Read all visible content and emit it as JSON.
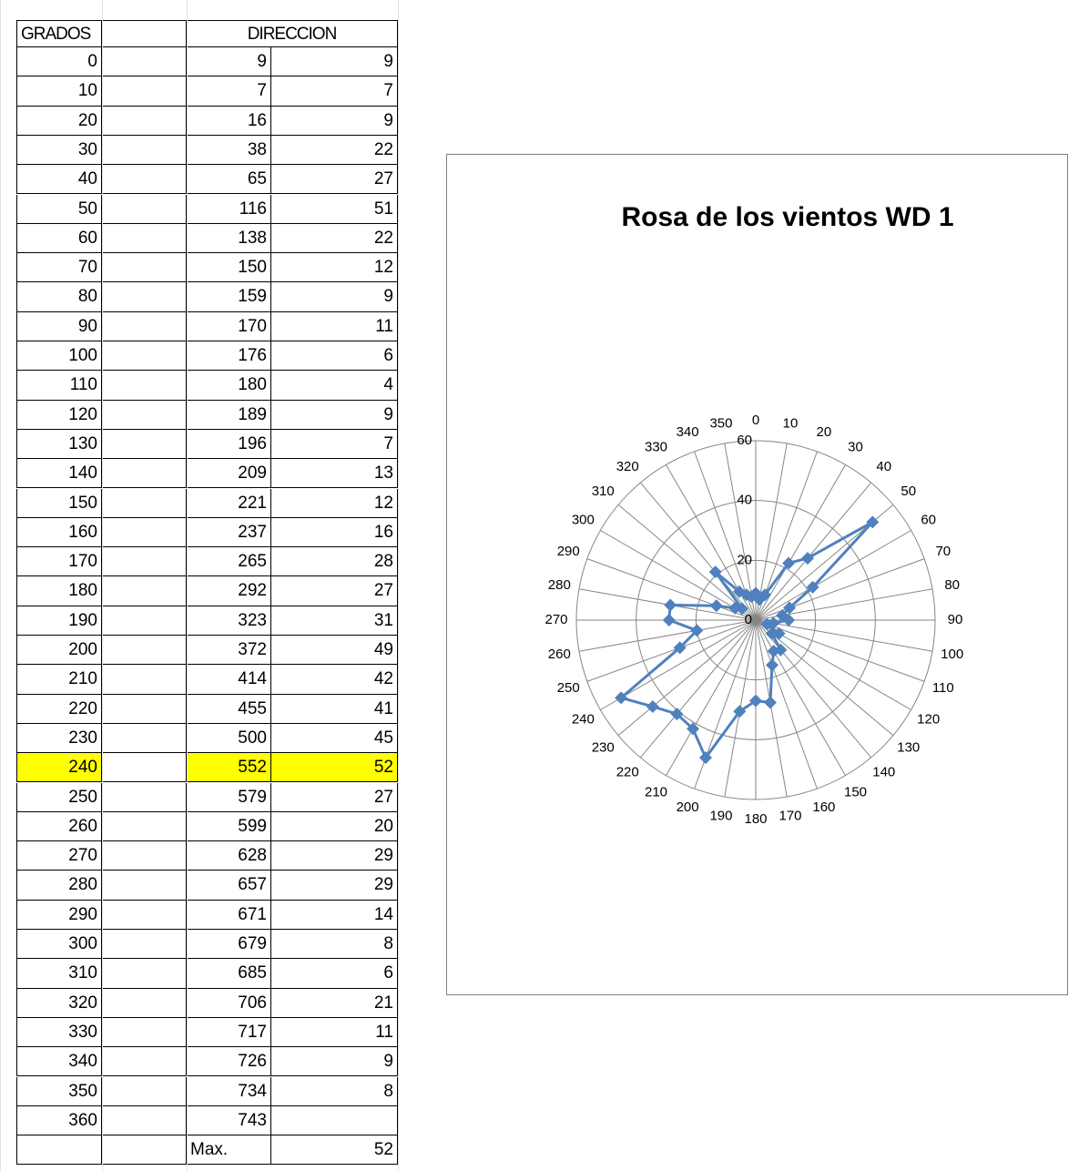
{
  "table": {
    "header": [
      "GRADOS",
      "DIRECCION"
    ],
    "rows": [
      [
        0,
        9,
        9
      ],
      [
        10,
        7,
        7
      ],
      [
        20,
        16,
        9
      ],
      [
        30,
        38,
        22
      ],
      [
        40,
        65,
        27
      ],
      [
        50,
        116,
        51
      ],
      [
        60,
        138,
        22
      ],
      [
        70,
        150,
        12
      ],
      [
        80,
        159,
        9
      ],
      [
        90,
        170,
        11
      ],
      [
        100,
        176,
        6
      ],
      [
        110,
        180,
        4
      ],
      [
        120,
        189,
        9
      ],
      [
        130,
        196,
        7
      ],
      [
        140,
        209,
        13
      ],
      [
        150,
        221,
        12
      ],
      [
        160,
        237,
        16
      ],
      [
        170,
        265,
        28
      ],
      [
        180,
        292,
        27
      ],
      [
        190,
        323,
        31
      ],
      [
        200,
        372,
        49
      ],
      [
        210,
        414,
        42
      ],
      [
        220,
        455,
        41
      ],
      [
        230,
        500,
        45
      ],
      [
        240,
        552,
        52
      ],
      [
        250,
        579,
        27
      ],
      [
        260,
        599,
        20
      ],
      [
        270,
        628,
        29
      ],
      [
        280,
        657,
        29
      ],
      [
        290,
        671,
        14
      ],
      [
        300,
        679,
        8
      ],
      [
        310,
        685,
        6
      ],
      [
        320,
        706,
        21
      ],
      [
        330,
        717,
        11
      ],
      [
        340,
        726,
        9
      ],
      [
        350,
        734,
        8
      ],
      [
        360,
        743,
        null
      ],
      [
        null,
        "Max.",
        52
      ]
    ],
    "highlight": {
      "row": 24,
      "color": "#ffff00"
    }
  },
  "chart_data": {
    "type": "radar",
    "title": "Rosa de los vientos  WD 1",
    "categories": [
      0,
      10,
      20,
      30,
      40,
      50,
      60,
      70,
      80,
      90,
      100,
      110,
      120,
      130,
      140,
      150,
      160,
      170,
      180,
      190,
      200,
      210,
      220,
      230,
      240,
      250,
      260,
      270,
      280,
      290,
      300,
      310,
      320,
      330,
      340,
      350
    ],
    "values": [
      9,
      7,
      9,
      22,
      27,
      51,
      22,
      12,
      9,
      11,
      6,
      4,
      9,
      7,
      13,
      12,
      16,
      28,
      27,
      31,
      49,
      42,
      41,
      45,
      52,
      27,
      20,
      29,
      29,
      14,
      8,
      6,
      21,
      11,
      9,
      8
    ],
    "color": "#4f81bd",
    "ylim": [
      0,
      60
    ],
    "yticks": [
      0,
      20,
      40,
      60
    ],
    "grid": true
  }
}
